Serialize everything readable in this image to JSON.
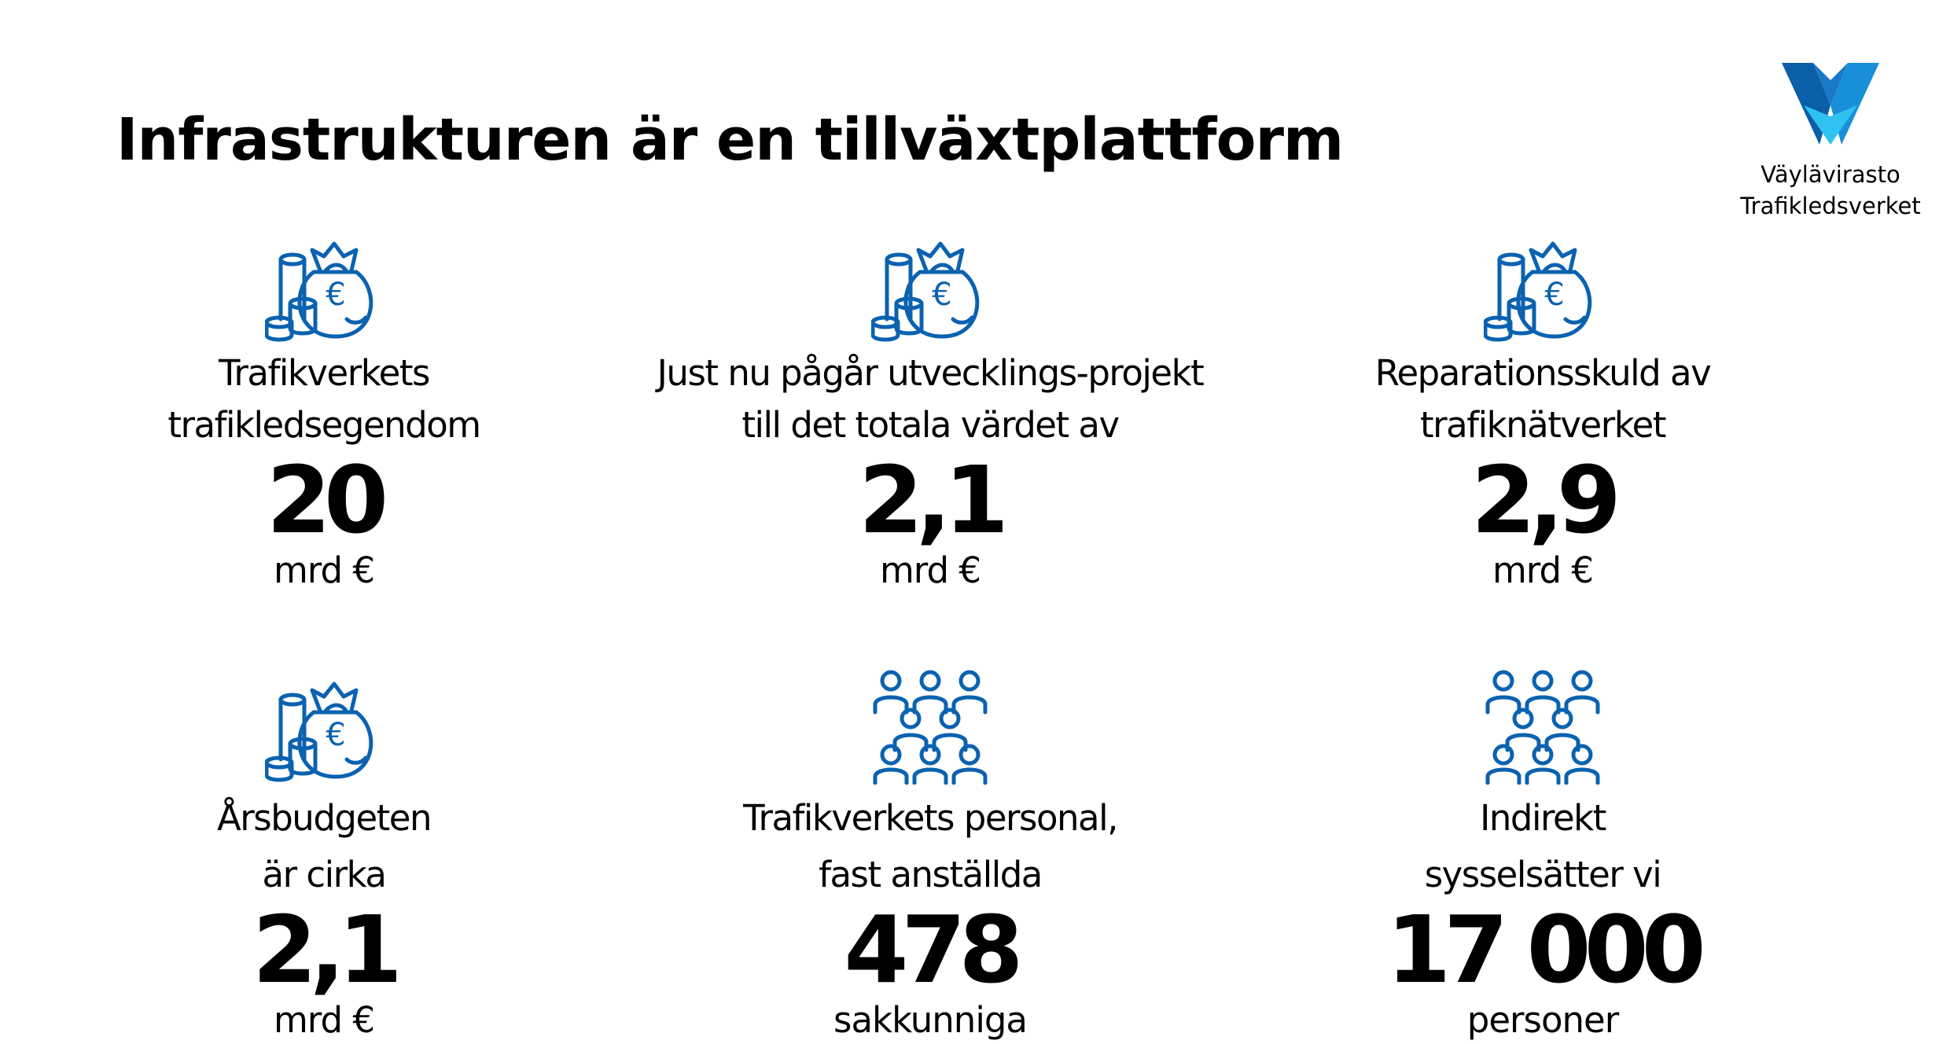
{
  "title": "Infrastrukturen är en tillväxtplattform",
  "logo": {
    "line1": "Väylävirasto",
    "line2": "Trafikledsverket",
    "colors": {
      "dark": "#0a5fa8",
      "mid": "#1a8fd9",
      "light": "#2fc2f0"
    }
  },
  "accent_color": "#0a62b0",
  "stats": [
    {
      "icon": "money-bag-icon",
      "label_lines": [
        "Trafikverkets",
        "trafikledsegendom"
      ],
      "value": "20",
      "unit": "mrd €"
    },
    {
      "icon": "money-bag-icon",
      "label_lines": [
        "Just nu pågår utvecklings-projekt",
        "till det totala värdet av"
      ],
      "value": "2,1",
      "unit": "mrd €"
    },
    {
      "icon": "money-bag-icon",
      "label_lines": [
        "Reparationsskuld av",
        "trafiknätverket"
      ],
      "value": "2,9",
      "unit": "mrd €"
    },
    {
      "icon": "money-bag-icon",
      "label_lines": [
        "Årsbudgeten",
        "är cirka"
      ],
      "value": "2,1",
      "unit": "mrd €"
    },
    {
      "icon": "people-group-icon",
      "label_lines": [
        "Trafikverkets personal,",
        "fast anställda"
      ],
      "value": "478",
      "unit": "sakkunniga"
    },
    {
      "icon": "people-group-icon",
      "label_lines": [
        "Indirekt",
        "sysselsätter vi"
      ],
      "value": "17 000",
      "unit": "personer"
    }
  ]
}
